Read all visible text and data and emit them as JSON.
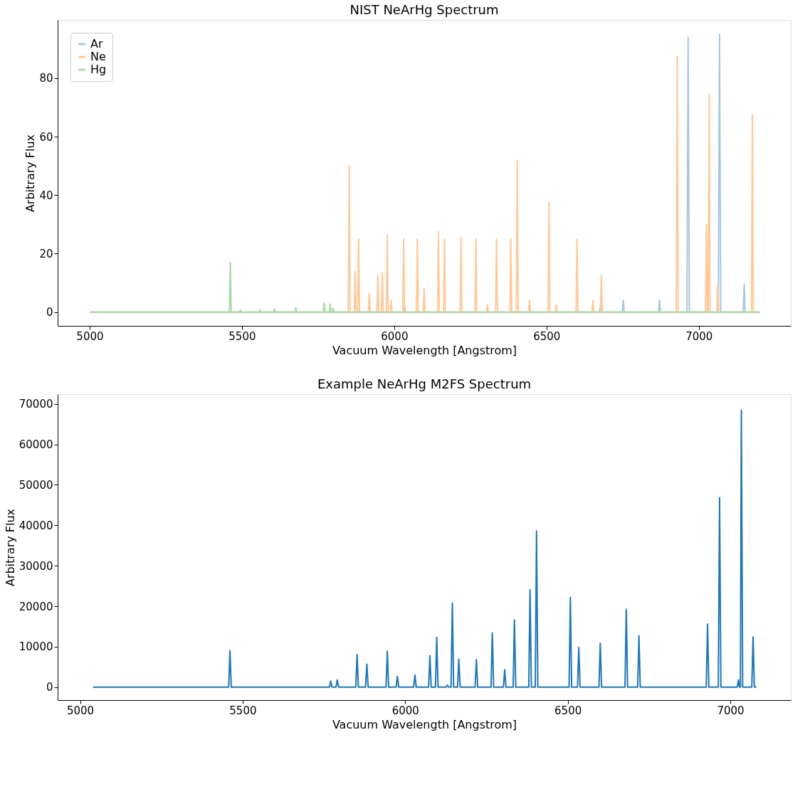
{
  "chart_data": [
    {
      "type": "line",
      "title": "NIST NeArHg Spectrum",
      "xlabel": "Vacuum Wavelength [Angstrom]",
      "ylabel": "Arbitrary Flux",
      "xlim": [
        4895,
        7302
      ],
      "ylim": [
        -4.7,
        99.9
      ],
      "xticks": [
        5000,
        5500,
        6000,
        6500,
        7000
      ],
      "yticks": [
        0,
        20,
        40,
        60,
        80
      ],
      "grid": false,
      "legend": "top left",
      "line_style": "solid",
      "series": [
        {
          "name": "Ar",
          "color": "#a5c8e1",
          "x": [
            5000,
            5492,
            5495,
            5498,
            5557,
            5560,
            5563,
            5604,
            5607,
            5610,
            6031,
            6034,
            6037,
            6674,
            6677,
            6680,
            6749,
            6752,
            6755,
            6868,
            6871,
            6874,
            6961,
            6965,
            6969,
            7064,
            7068,
            7072,
            7146,
            7149,
            7152,
            7200
          ],
          "values": [
            0,
            0,
            0.7,
            0,
            0,
            0.7,
            0,
            0,
            1,
            0,
            0,
            2,
            0,
            0,
            2.5,
            0,
            0,
            4,
            0,
            0,
            4,
            0,
            0,
            94,
            0,
            0,
            95,
            0,
            0,
            9.5,
            0,
            0
          ]
        },
        {
          "name": "Ne",
          "color": "#ffc999",
          "x": [
            5000,
            5849,
            5852,
            5855,
            5869,
            5872,
            5875,
            5880,
            5883,
            5886,
            5915,
            5918,
            5921,
            5943,
            5946,
            5949,
            5958,
            5961,
            5964,
            5974,
            5977,
            5980,
            5987,
            5990,
            5993,
            6028,
            6031,
            6034,
            6073,
            6076,
            6079,
            6095,
            6098,
            6101,
            6142,
            6145,
            6148,
            6162,
            6165,
            6168,
            6216,
            6219,
            6222,
            6265,
            6268,
            6271,
            6303,
            6306,
            6309,
            6333,
            6336,
            6339,
            6380,
            6383,
            6386,
            6401,
            6404,
            6407,
            6441,
            6444,
            6447,
            6505,
            6508,
            6511,
            6529,
            6532,
            6535,
            6597,
            6600,
            6603,
            6649,
            6652,
            6655,
            6677,
            6680,
            6683,
            6926,
            6929,
            6932,
            7022,
            7025,
            7028,
            7031,
            7034,
            7037,
            7059,
            7062,
            7065,
            7173,
            7176,
            7179,
            7200
          ],
          "values": [
            0,
            0,
            50,
            0,
            0,
            14,
            0,
            0,
            25,
            0,
            0,
            6.5,
            0,
            0,
            12.5,
            0,
            0,
            13.5,
            0,
            0,
            26.5,
            0,
            0,
            4,
            0,
            0,
            25,
            0,
            0,
            25,
            0,
            0,
            8,
            0,
            0,
            27.5,
            0,
            0,
            25,
            0,
            0,
            25.5,
            0,
            0,
            25,
            0,
            0,
            2.5,
            0,
            0,
            25,
            0,
            0,
            25,
            0,
            0,
            52,
            0,
            0,
            4,
            0,
            0,
            37.5,
            0,
            0,
            2.5,
            0,
            0,
            25,
            0,
            0,
            4,
            0,
            0,
            12.5,
            0,
            0,
            87.5,
            0,
            0,
            30,
            0,
            0,
            74.5,
            0,
            0,
            9,
            0,
            0,
            67.5,
            0,
            0
          ]
        },
        {
          "name": "Hg",
          "color": "#aad9aa",
          "x": [
            5000,
            5459,
            5462,
            5465,
            5674,
            5677,
            5680,
            5767,
            5770,
            5773,
            5787,
            5790,
            5793,
            5797,
            5800,
            5803,
            7200
          ],
          "values": [
            0,
            0,
            17,
            0,
            0,
            1.5,
            0,
            0,
            3,
            0,
            0,
            2.8,
            0,
            0,
            1.3,
            0,
            0
          ]
        }
      ]
    },
    {
      "type": "line",
      "title": "Example NeArHg M2FS Spectrum",
      "xlabel": "Vacuum Wavelength [Angstrom]",
      "ylabel": "Arbitrary Flux",
      "xlim": [
        4931,
        7186
      ],
      "ylim": [
        -3200,
        72400
      ],
      "xticks": [
        5000,
        5500,
        6000,
        6500,
        7000
      ],
      "yticks": [
        0,
        10000,
        20000,
        30000,
        40000,
        50000,
        60000,
        70000
      ],
      "grid": false,
      "legend": false,
      "line_style": "solid",
      "series": [
        {
          "color": "#1f77b4",
          "x": [
            5040,
            5457,
            5461,
            5465,
            5767,
            5771,
            5775,
            5787,
            5791,
            5795,
            5848,
            5852,
            5856,
            5878,
            5882,
            5886,
            5941,
            5945,
            5949,
            5972,
            5976,
            5980,
            6026,
            6030,
            6034,
            6072,
            6076,
            6080,
            6093,
            6097,
            6101,
            6126,
            6130,
            6134,
            6141,
            6145,
            6149,
            6161,
            6165,
            6169,
            6215,
            6219,
            6223,
            6264,
            6268,
            6272,
            6302,
            6306,
            6310,
            6332,
            6336,
            6340,
            6380,
            6384,
            6388,
            6400,
            6404,
            6408,
            6504,
            6508,
            6512,
            6530,
            6534,
            6538,
            6596,
            6600,
            6604,
            6676,
            6680,
            6684,
            6715,
            6719,
            6723,
            6926,
            6930,
            6934,
            6963,
            6967,
            6971,
            7021,
            7025,
            7028,
            7031,
            7034,
            7038,
            7066,
            7070,
            7074,
            7080
          ],
          "values": [
            0,
            0,
            9000,
            0,
            0,
            1500,
            0,
            0,
            1800,
            0,
            0,
            8100,
            0,
            0,
            5700,
            0,
            0,
            8900,
            0,
            0,
            2700,
            0,
            0,
            3000,
            0,
            0,
            7800,
            0,
            0,
            12300,
            0,
            0,
            500,
            0,
            0,
            20800,
            0,
            0,
            6900,
            0,
            0,
            6800,
            0,
            0,
            13400,
            0,
            0,
            4300,
            0,
            0,
            16600,
            0,
            0,
            24100,
            0,
            0,
            38600,
            0,
            0,
            22200,
            0,
            0,
            9800,
            0,
            0,
            10800,
            0,
            0,
            19200,
            0,
            0,
            12700,
            0,
            0,
            15600,
            0,
            0,
            46800,
            0,
            0,
            1800,
            0,
            0,
            68500,
            0,
            0,
            12400,
            0,
            0
          ]
        }
      ]
    }
  ]
}
